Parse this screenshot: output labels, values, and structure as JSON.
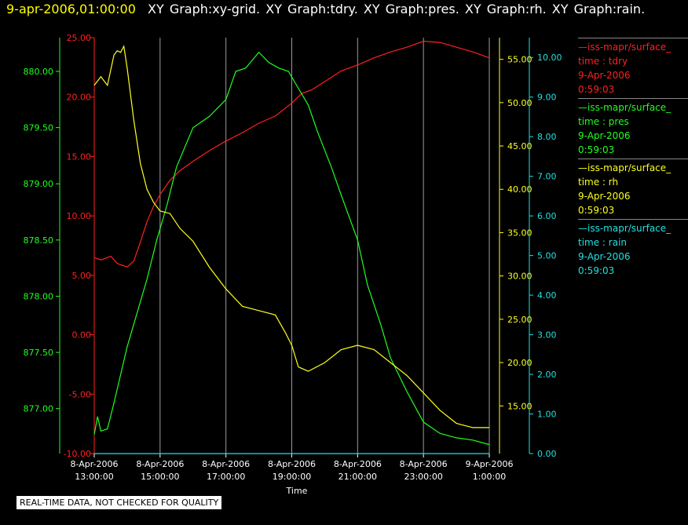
{
  "header": {
    "timestamp": "9-apr-2006,01:00:00",
    "graph_titles": "XY Graph:xy-grid.  XY Graph:tdry.  XY Graph:pres.  XY Graph:rh.  XY Graph:rain."
  },
  "legend": [
    {
      "name": "—iss-mapr/surface_",
      "var": "time : tdry",
      "date": "9-Apr-2006",
      "time": "0:59:03",
      "color": "#ff2020"
    },
    {
      "name": "—iss-mapr/surface_",
      "var": "time : pres",
      "date": "9-Apr-2006",
      "time": "0:59:03",
      "color": "#20ff20"
    },
    {
      "name": "—iss-mapr/surface_",
      "var": "time : rh",
      "date": "9-Apr-2006",
      "time": "0:59:03",
      "color": "#ffff20"
    },
    {
      "name": "—iss-mapr/surface_",
      "var": "time : rain",
      "date": "9-Apr-2006",
      "time": "0:59:03",
      "color": "#20e0e0"
    }
  ],
  "note": "REAL-TIME DATA, NOT CHECKED FOR QUALITY",
  "chart_data": {
    "type": "line",
    "xlabel": "Time",
    "x_ticks": [
      {
        "d": "8-Apr-2006",
        "t": "13:00:00",
        "h": 13
      },
      {
        "d": "8-Apr-2006",
        "t": "15:00:00",
        "h": 15
      },
      {
        "d": "8-Apr-2006",
        "t": "17:00:00",
        "h": 17
      },
      {
        "d": "8-Apr-2006",
        "t": "19:00:00",
        "h": 19
      },
      {
        "d": "8-Apr-2006",
        "t": "21:00:00",
        "h": 21
      },
      {
        "d": "8-Apr-2006",
        "t": "23:00:00",
        "h": 23
      },
      {
        "d": "9-Apr-2006",
        "t": "1:00:00",
        "h": 25
      }
    ],
    "xlim": [
      13,
      25
    ],
    "grid": true,
    "axes": [
      {
        "id": "tdry",
        "color": "#ff2020",
        "ylim": [
          -10,
          25
        ],
        "ticks": [
          "25.00",
          "20.00",
          "15.00",
          "10.00",
          "5.00",
          "0.00",
          "-5.00",
          "-10.00"
        ]
      },
      {
        "id": "pres",
        "color": "#20ff20",
        "ylim": [
          876.6,
          880.3
        ],
        "ticks": [
          "880.00",
          "879.50",
          "879.00",
          "878.50",
          "878.00",
          "877.50",
          "877.00"
        ]
      },
      {
        "id": "rh",
        "color": "#ffff20",
        "ylim": [
          9.5,
          57.5
        ],
        "ticks": [
          "55.00",
          "50.00",
          "45.00",
          "40.00",
          "35.00",
          "30.00",
          "25.00",
          "20.00",
          "15.00"
        ]
      },
      {
        "id": "rain",
        "color": "#20e0e0",
        "ylim": [
          0,
          10.5
        ],
        "ticks": [
          "10.00",
          "9.00",
          "8.00",
          "7.00",
          "6.00",
          "5.00",
          "4.00",
          "3.00",
          "2.00",
          "1.00",
          "0.00"
        ]
      }
    ],
    "series": [
      {
        "id": "tdry",
        "color": "#ff2020",
        "x": [
          13.0,
          13.2,
          13.5,
          13.7,
          14.0,
          14.2,
          14.4,
          14.6,
          14.8,
          15.0,
          15.3,
          15.6,
          16.0,
          16.5,
          17.0,
          17.5,
          18.0,
          18.5,
          19.0,
          19.3,
          19.6,
          20.0,
          20.5,
          21.0,
          21.5,
          22.0,
          22.5,
          23.0,
          23.5,
          24.0,
          24.5,
          25.0
        ],
        "y": [
          6.5,
          6.3,
          6.6,
          6.0,
          5.7,
          6.2,
          7.8,
          9.5,
          10.8,
          11.8,
          13.0,
          13.8,
          14.6,
          15.5,
          16.3,
          17.0,
          17.8,
          18.4,
          19.5,
          20.3,
          20.6,
          21.3,
          22.2,
          22.7,
          23.3,
          23.8,
          24.2,
          24.7,
          24.6,
          24.2,
          23.8,
          23.3
        ]
      },
      {
        "id": "pres",
        "color": "#20ff20",
        "x": [
          13.0,
          13.1,
          13.2,
          13.4,
          13.6,
          13.8,
          14.0,
          14.3,
          14.6,
          14.9,
          15.2,
          15.5,
          16.0,
          16.5,
          17.0,
          17.3,
          17.6,
          18.0,
          18.3,
          18.6,
          18.9,
          19.2,
          19.5,
          19.8,
          20.2,
          20.5,
          21.0,
          21.3,
          21.7,
          22.0,
          22.5,
          23.0,
          23.5,
          24.0,
          24.5,
          25.0
        ],
        "y": [
          876.77,
          876.93,
          876.8,
          876.82,
          877.05,
          877.3,
          877.55,
          877.85,
          878.15,
          878.5,
          878.8,
          879.15,
          879.5,
          879.6,
          879.75,
          880.0,
          880.03,
          880.17,
          880.08,
          880.03,
          880.0,
          879.85,
          879.7,
          879.45,
          879.15,
          878.9,
          878.5,
          878.1,
          877.75,
          877.45,
          877.15,
          876.88,
          876.78,
          876.74,
          876.72,
          876.68
        ]
      },
      {
        "id": "rh",
        "color": "#ffff20",
        "x": [
          13.0,
          13.2,
          13.4,
          13.6,
          13.7,
          13.8,
          13.9,
          14.0,
          14.2,
          14.4,
          14.6,
          14.8,
          15.0,
          15.3,
          15.6,
          16.0,
          16.5,
          17.0,
          17.5,
          18.0,
          18.5,
          18.8,
          19.0,
          19.2,
          19.5,
          20.0,
          20.5,
          21.0,
          21.5,
          22.0,
          22.5,
          23.0,
          23.5,
          24.0,
          24.5,
          25.0
        ],
        "y": [
          52.0,
          53.0,
          52.0,
          55.5,
          56.0,
          55.8,
          56.5,
          54.0,
          48.0,
          43.0,
          40.0,
          38.5,
          37.5,
          37.2,
          35.5,
          34.0,
          31.0,
          28.5,
          26.5,
          26.0,
          25.5,
          23.5,
          22.0,
          19.5,
          19.0,
          20.0,
          21.5,
          22.0,
          21.5,
          20.0,
          18.5,
          16.5,
          14.5,
          13.0,
          12.5,
          12.5
        ]
      },
      {
        "id": "rain",
        "color": "#20e0e0",
        "x": [
          13.0,
          25.0
        ],
        "y": [
          0.0,
          0.0
        ]
      }
    ]
  }
}
